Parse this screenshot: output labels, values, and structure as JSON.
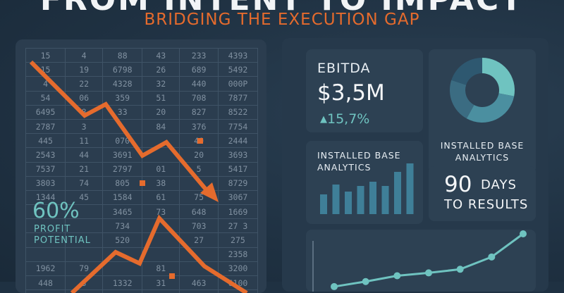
{
  "header": {
    "title": "FROM INTENT TO IMPACT",
    "subtitle": "BRIDGING THE EXECUTION GAP"
  },
  "left_panel": {
    "table_rows": [
      [
        "15",
        "4",
        "88",
        "43",
        "233",
        "4393"
      ],
      [
        "15",
        "19",
        "6798",
        "26",
        "689",
        "5492"
      ],
      [
        "4",
        "22",
        "4328",
        "32",
        "440",
        "000P"
      ],
      [
        "54",
        "06",
        "359",
        "51",
        "708",
        "7877"
      ],
      [
        "6495",
        "8",
        "33",
        "20",
        "827",
        "8522"
      ],
      [
        "2787",
        "3",
        "",
        "84",
        "376",
        "7754"
      ],
      [
        "445",
        "11",
        "070",
        "",
        "40",
        "2444"
      ],
      [
        "2543",
        "44",
        "3691",
        "",
        "20",
        "3693"
      ],
      [
        "7537",
        "21",
        "2797",
        "01",
        "5",
        "5417"
      ],
      [
        "3803",
        "74",
        "805",
        "38",
        "",
        "8729"
      ],
      [
        "1344",
        "45",
        "1584",
        "61",
        "75",
        "3067"
      ],
      [
        "",
        "",
        "3465",
        "73",
        "648",
        "1669"
      ],
      [
        "",
        "",
        "734",
        "",
        "703",
        "27 3"
      ],
      [
        "",
        "",
        "520",
        "",
        "27",
        "275"
      ],
      [
        "",
        "",
        "",
        "",
        "",
        "2358"
      ],
      [
        "1962",
        "79",
        "",
        "81",
        "",
        "3200"
      ],
      [
        "448",
        "3",
        "1332",
        "31",
        "463",
        "6100"
      ],
      [
        "",
        "",
        "",
        "",
        "",
        ""
      ]
    ],
    "profit_value": "60%",
    "profit_label": "PROFIT POTENTIAL",
    "accent_color": "#e56b2d"
  },
  "ebitda": {
    "title": "EBITDA",
    "value": "$3,5M",
    "change": "15,7%",
    "change_icon": "triangle-up-icon"
  },
  "donut": {
    "label": "INSTALLED BASE ANALYTICS",
    "segments": [
      {
        "value": 0.28,
        "color": "#6fc3c0"
      },
      {
        "value": 0.3,
        "color": "#4b8fa0"
      },
      {
        "value": 0.22,
        "color": "#3b6c82"
      },
      {
        "value": 0.2,
        "color": "#2e5870"
      }
    ]
  },
  "bar_card": {
    "label": "INSTALLED BASE ANALYTICS",
    "values": [
      28,
      42,
      32,
      40,
      46,
      40,
      60,
      72
    ],
    "color": "#3f7f98"
  },
  "days_card": {
    "number": "90",
    "unit": "DAYS",
    "subtitle": "TO RESULTS"
  },
  "line_card": {
    "values": [
      3,
      10,
      18,
      22,
      27,
      44,
      76
    ],
    "color": "#6fc3c0"
  },
  "colors": {
    "background": "#1f3142",
    "panel": "#2b3d4f",
    "card": "#2d4153",
    "teal": "#6fc3c0",
    "orange": "#e56b2d"
  }
}
